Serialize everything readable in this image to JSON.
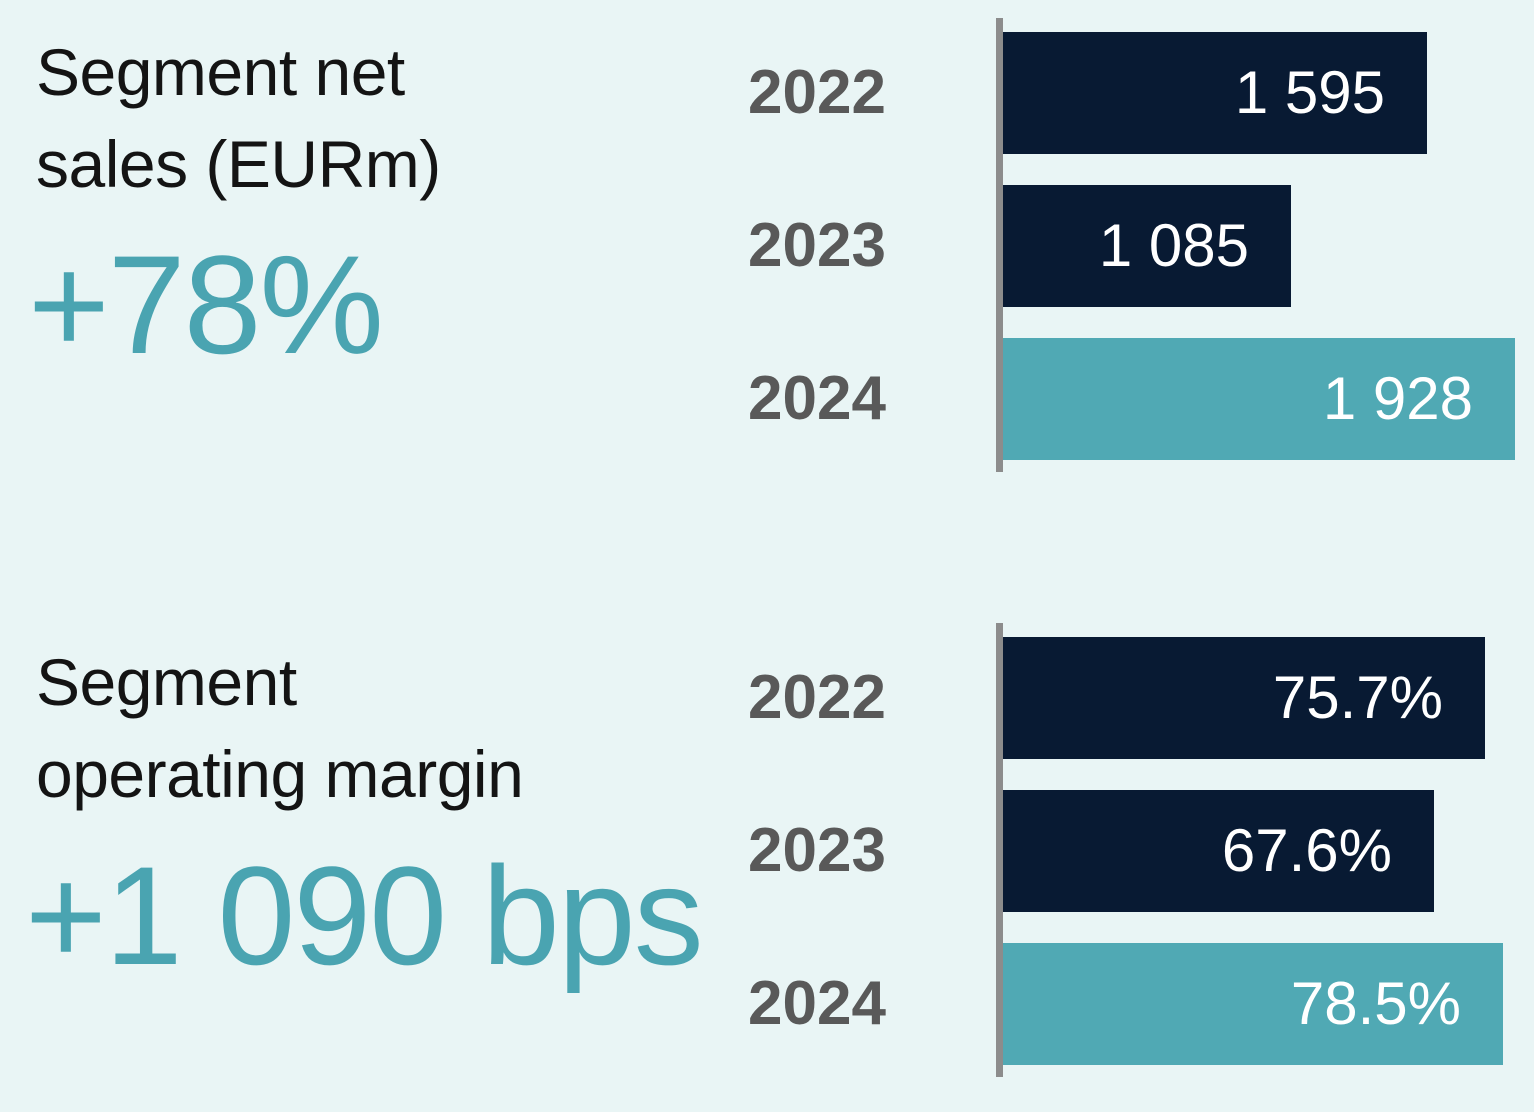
{
  "canvas": {
    "background": "#e9f5f5"
  },
  "colors": {
    "navy": "#081a33",
    "teal": "#50a9b4",
    "accent_text": "#4aa4b1",
    "axis": "#8c8c8c",
    "year_label": "#595959",
    "headline": "#141414",
    "value_label": "#ffffff"
  },
  "chart_data": [
    {
      "type": "bar",
      "orientation": "horizontal",
      "title": "Segment net sales (EURm)",
      "title_lines": [
        "Segment net",
        "sales (EURm)"
      ],
      "highlight": "+78%",
      "categories": [
        "2022",
        "2023",
        "2024"
      ],
      "values": [
        1595,
        1085,
        1928
      ],
      "value_labels": [
        "1 595",
        "1 085",
        "1 928"
      ],
      "bar_color_roles": [
        "navy",
        "navy",
        "teal"
      ],
      "xlim": [
        0,
        1928
      ],
      "grid": false,
      "legend": "none",
      "value_label_position": "inside-right"
    },
    {
      "type": "bar",
      "orientation": "horizontal",
      "title": "Segment operating margin",
      "title_lines": [
        "Segment",
        "operating margin"
      ],
      "highlight": "+1 090 bps",
      "categories": [
        "2022",
        "2023",
        "2024"
      ],
      "values": [
        75.7,
        67.6,
        78.5
      ],
      "value_labels": [
        "75.7%",
        "67.6%",
        "78.5%"
      ],
      "bar_color_roles": [
        "navy",
        "navy",
        "teal"
      ],
      "xlim": [
        0,
        78.5
      ],
      "grid": false,
      "legend": "none",
      "value_label_position": "inside-right"
    }
  ]
}
